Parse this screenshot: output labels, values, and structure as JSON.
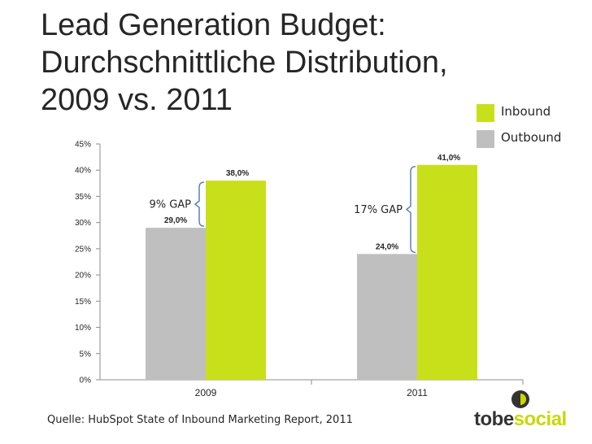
{
  "title_lines": [
    "Lead Generation Budget:",
    "Durchschnittliche Distribution,",
    "2009 vs. 2011"
  ],
  "legend": [
    {
      "label": "Inbound",
      "color": "#c8e01a"
    },
    {
      "label": "Outbound",
      "color": "#bfbfbf"
    }
  ],
  "chart_data": {
    "type": "bar",
    "categories": [
      "2009",
      "2011"
    ],
    "series": [
      {
        "name": "Outbound",
        "color": "#bfbfbf",
        "values": [
          29.0,
          24.0
        ],
        "labels": [
          "29,0%",
          "24,0%"
        ]
      },
      {
        "name": "Inbound",
        "color": "#c8e01a",
        "values": [
          38.0,
          41.0
        ],
        "labels": [
          "38,0%",
          "41,0%"
        ]
      }
    ],
    "ylim": [
      0,
      45
    ],
    "yticks": [
      0,
      5,
      10,
      15,
      20,
      25,
      30,
      35,
      40,
      45
    ],
    "ytick_labels": [
      "0%",
      "5%",
      "10%",
      "15%",
      "20%",
      "25%",
      "30%",
      "35%",
      "40%",
      "45%"
    ],
    "annotations": [
      {
        "text": "9% GAP",
        "category": "2009"
      },
      {
        "text": "17% GAP",
        "category": "2011"
      }
    ]
  },
  "source": "Quelle: HubSpot State of Inbound Marketing Report,  2011",
  "logo": {
    "part1": "tobe",
    "part2": "social",
    "color1": "#333333",
    "color2": "#c9d800"
  }
}
